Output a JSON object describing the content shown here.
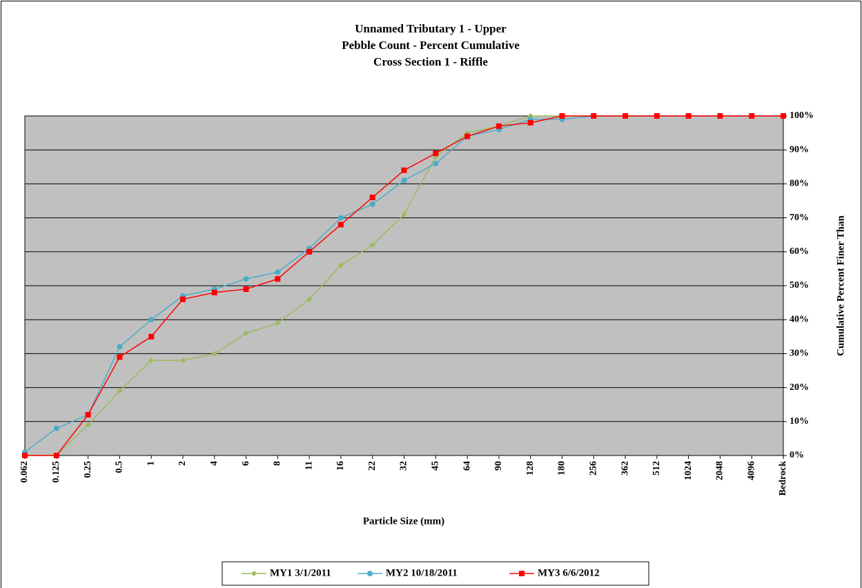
{
  "chart_data": {
    "type": "line",
    "title": [
      "Unnamed Tributary 1 - Upper",
      "Pebble Count - Percent Cumulative",
      "Cross Section 1 - Riffle"
    ],
    "x_label": "Particle Size (mm)",
    "y_label": "Cumulative Percent Finer Than",
    "categories": [
      "0.062",
      "0.125",
      "0.25",
      "0.5",
      "1",
      "2",
      "4",
      "6",
      "8",
      "11",
      "16",
      "22",
      "32",
      "45",
      "64",
      "90",
      "128",
      "180",
      "256",
      "362",
      "512",
      "1024",
      "2048",
      "4096",
      "Bedrock"
    ],
    "series": [
      {
        "name": "MY1 3/1/2011",
        "color": "#9bbb59",
        "marker": "diamond",
        "values": [
          0,
          0,
          9,
          19,
          28,
          28,
          30,
          36,
          39,
          46,
          56,
          62,
          71,
          88,
          95,
          97,
          100,
          100,
          100,
          100,
          100,
          100,
          100,
          100,
          100
        ]
      },
      {
        "name": "MY2 10/18/2011",
        "color": "#4bacc6",
        "marker": "circle",
        "values": [
          1,
          8,
          12,
          32,
          40,
          47,
          49,
          52,
          54,
          61,
          70,
          74,
          81,
          86,
          94,
          96,
          99,
          99,
          100,
          100,
          100,
          100,
          100,
          100,
          100
        ]
      },
      {
        "name": "MY3 6/6/2012",
        "color": "#ff0000",
        "marker": "square",
        "values": [
          0,
          0,
          12,
          29,
          35,
          46,
          48,
          49,
          52,
          60,
          68,
          76,
          84,
          89,
          94,
          97,
          98,
          100,
          100,
          100,
          100,
          100,
          100,
          100,
          100
        ]
      }
    ],
    "ylim": [
      0,
      100
    ],
    "yticks": [
      {
        "value": 0,
        "label": "0%"
      },
      {
        "value": 10,
        "label": "10%"
      },
      {
        "value": 20,
        "label": "20%"
      },
      {
        "value": 30,
        "label": "30%"
      },
      {
        "value": 40,
        "label": "40%"
      },
      {
        "value": 50,
        "label": "50%"
      },
      {
        "value": 60,
        "label": "60%"
      },
      {
        "value": 70,
        "label": "70%"
      },
      {
        "value": 80,
        "label": "80%"
      },
      {
        "value": 90,
        "label": "90%"
      },
      {
        "value": 100,
        "label": "100%"
      }
    ],
    "y_axis_side": "right",
    "grid": true,
    "plot_background": "#c0c0c0",
    "legend": "bottom"
  }
}
